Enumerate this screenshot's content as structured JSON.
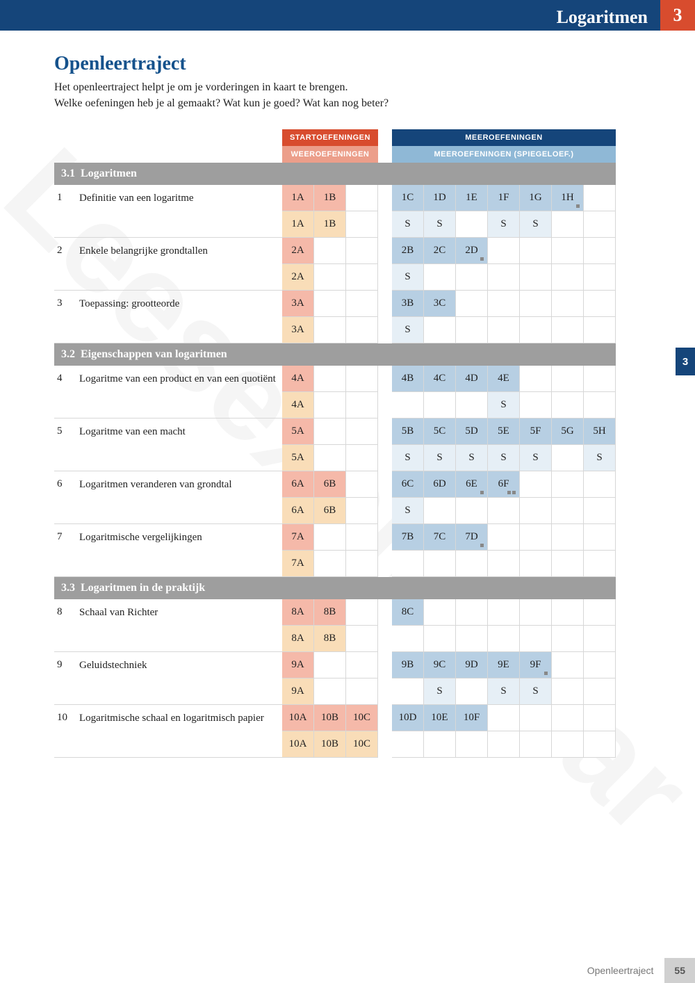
{
  "watermark": "Leesexemplaar",
  "topbar": {
    "title": "Logaritmen",
    "chapter": "3"
  },
  "section": {
    "title": "Openleertraject",
    "intro1": "Het openleertraject helpt je om je vorderingen in kaart te brengen.",
    "intro2": "Welke oefeningen heb je al gemaakt? Wat kun je goed? Wat kan nog beter?"
  },
  "headers": {
    "start": "STARTOEFENINGEN",
    "meer": "MEEROEFENINGEN",
    "weer": "WEEROEFENINGEN",
    "spiegel": "MEEROEFENINGEN (SPIEGELOEF.)"
  },
  "sideTab": "3",
  "footer": {
    "label": "Openleertraject",
    "page": "55"
  },
  "colors": {
    "blue": "#15457a",
    "orange": "#d84c2e",
    "startCell": "#f5b9a9",
    "weerCell": "#f9ddb8",
    "meerCell": "#b7cfe3",
    "spiegelCell": "#e6eff6",
    "sectionGrey": "#9e9e9e"
  },
  "sections": [
    {
      "num": "3.1",
      "title": "Logaritmen",
      "rows": [
        {
          "n": "1",
          "desc": "Definitie van een logaritme",
          "start": [
            "1A",
            "1B",
            ""
          ],
          "meer": [
            "1C",
            "1D",
            "1E",
            "1F",
            "1G",
            "1H",
            ""
          ],
          "dots": {
            "11": true
          },
          "weer": [
            "1A",
            "1B",
            ""
          ],
          "spiegel": [
            "S",
            "S",
            "",
            "S",
            "S",
            "",
            ""
          ]
        },
        {
          "n": "2",
          "desc": "Enkele belangrijke grondtallen",
          "start": [
            "2A",
            "",
            ""
          ],
          "meer": [
            "2B",
            "2C",
            "2D",
            "",
            "",
            "",
            ""
          ],
          "dots": {
            "8": true
          },
          "weer": [
            "2A",
            "",
            ""
          ],
          "spiegel": [
            "S",
            "",
            "",
            "",
            "",
            "",
            ""
          ]
        },
        {
          "n": "3",
          "desc": "Toepassing: grootteorde",
          "start": [
            "3A",
            "",
            ""
          ],
          "meer": [
            "3B",
            "3C",
            "",
            "",
            "",
            "",
            ""
          ],
          "weer": [
            "3A",
            "",
            ""
          ],
          "spiegel": [
            "S",
            "",
            "",
            "",
            "",
            "",
            ""
          ]
        }
      ]
    },
    {
      "num": "3.2",
      "title": "Eigenschappen van logaritmen",
      "rows": [
        {
          "n": "4",
          "desc": "Logaritme van een product en van een quotiënt",
          "start": [
            "4A",
            "",
            ""
          ],
          "meer": [
            "4B",
            "4C",
            "4D",
            "4E",
            "",
            "",
            ""
          ],
          "weer": [
            "4A",
            "",
            ""
          ],
          "spiegel": [
            "",
            "",
            "",
            "S",
            "",
            "",
            ""
          ]
        },
        {
          "n": "5",
          "desc": "Logaritme van een macht",
          "start": [
            "5A",
            "",
            ""
          ],
          "meer": [
            "5B",
            "5C",
            "5D",
            "5E",
            "5F",
            "5G",
            "5H"
          ],
          "weer": [
            "5A",
            "",
            ""
          ],
          "spiegel": [
            "S",
            "S",
            "S",
            "S",
            "S",
            "",
            "S"
          ]
        },
        {
          "n": "6",
          "desc": "Logaritmen veranderen van grondtal",
          "start": [
            "6A",
            "6B",
            ""
          ],
          "meer": [
            "6C",
            "6D",
            "6E",
            "6F",
            "",
            "",
            ""
          ],
          "dots": {
            "8": true,
            "9": "dd"
          },
          "weer": [
            "6A",
            "6B",
            ""
          ],
          "spiegel": [
            "S",
            "",
            "",
            "",
            "",
            "",
            ""
          ]
        },
        {
          "n": "7",
          "desc": "Logaritmische vergelijkingen",
          "start": [
            "7A",
            "",
            ""
          ],
          "meer": [
            "7B",
            "7C",
            "7D",
            "",
            "",
            "",
            ""
          ],
          "dots": {
            "8": true
          },
          "weer": [
            "7A",
            "",
            ""
          ],
          "spiegel": [
            "",
            "",
            "",
            "",
            "",
            "",
            ""
          ]
        }
      ]
    },
    {
      "num": "3.3",
      "title": "Logaritmen in de praktijk",
      "rows": [
        {
          "n": "8",
          "desc": "Schaal van Richter",
          "start": [
            "8A",
            "8B",
            ""
          ],
          "meer": [
            "8C",
            "",
            "",
            "",
            "",
            "",
            ""
          ],
          "weer": [
            "8A",
            "8B",
            ""
          ],
          "spiegel": [
            "",
            "",
            "",
            "",
            "",
            "",
            ""
          ]
        },
        {
          "n": "9",
          "desc": "Geluidstechniek",
          "start": [
            "9A",
            "",
            ""
          ],
          "meer": [
            "9B",
            "9C",
            "9D",
            "9E",
            "9F",
            "",
            ""
          ],
          "dots": {
            "10": true
          },
          "weer": [
            "9A",
            "",
            ""
          ],
          "spiegel": [
            "",
            "S",
            "",
            "S",
            "S",
            "",
            ""
          ]
        },
        {
          "n": "10",
          "desc": "Logaritmische schaal en logaritmisch papier",
          "start": [
            "10A",
            "10B",
            "10C"
          ],
          "meer": [
            "10D",
            "10E",
            "10F",
            "",
            "",
            "",
            ""
          ],
          "weer": [
            "10A",
            "10B",
            "10C"
          ],
          "spiegel": [
            "",
            "",
            "",
            "",
            "",
            "",
            ""
          ]
        }
      ]
    }
  ]
}
